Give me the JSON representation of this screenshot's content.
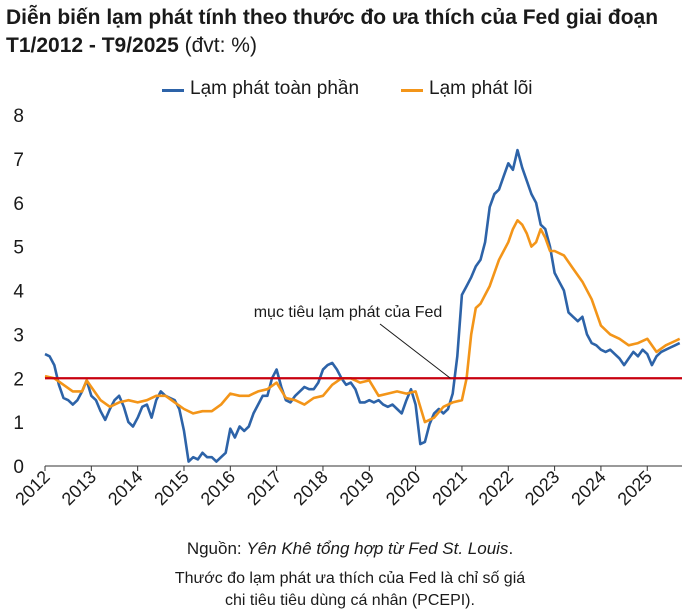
{
  "header": {
    "title_bold": "Diễn biến lạm phát tính theo thước đo ưa thích của Fed giai đoạn T1/2012 - T9/2025",
    "title_unit": "(đvt: %)"
  },
  "footer": {
    "source_prefix": "Nguồn: ",
    "source_text": "Yên Khê tổng hợp từ Fed St. Louis",
    "source_suffix": ".",
    "note_line1": "Thước đo lạm phát ưa thích của Fed là chỉ số giá",
    "note_line2": "chi tiêu tiêu dùng cá nhân (PCEPI)."
  },
  "colors": {
    "headline": "#2d63a8",
    "core": "#f39519",
    "target": "#c8000f",
    "axis": "#333333"
  },
  "chart_data": {
    "type": "line",
    "title": "Diễn biến lạm phát tính theo thước đo ưa thích của Fed giai đoạn T1/2012 - T9/2025",
    "xlabel": "",
    "ylabel": "",
    "ylim": [
      0,
      8
    ],
    "yticks": [
      "0",
      "1",
      "2",
      "3",
      "4",
      "5",
      "6",
      "7",
      "8"
    ],
    "xticks": [
      "2012",
      "2013",
      "2014",
      "2015",
      "2016",
      "2017",
      "2018",
      "2019",
      "2020",
      "2021",
      "2022",
      "2023",
      "2024",
      "2025"
    ],
    "xlim": [
      2012.0,
      2025.75
    ],
    "grid": false,
    "legend_position": "top",
    "annotation": {
      "text": "mục tiêu lạm phát của Fed",
      "target_value": 2,
      "points_to_year": 2020.75
    },
    "series": [
      {
        "name": "Lạm phát toàn phần",
        "x": [
          2012.0,
          2012.1,
          2012.2,
          2012.3,
          2012.4,
          2012.5,
          2012.6,
          2012.7,
          2012.8,
          2012.9,
          2013.0,
          2013.1,
          2013.2,
          2013.3,
          2013.4,
          2013.5,
          2013.6,
          2013.7,
          2013.8,
          2013.9,
          2014.0,
          2014.1,
          2014.2,
          2014.3,
          2014.4,
          2014.5,
          2014.6,
          2014.7,
          2014.8,
          2014.9,
          2015.0,
          2015.1,
          2015.2,
          2015.3,
          2015.4,
          2015.5,
          2015.6,
          2015.7,
          2015.8,
          2015.9,
          2016.0,
          2016.1,
          2016.2,
          2016.3,
          2016.4,
          2016.5,
          2016.6,
          2016.7,
          2016.8,
          2016.9,
          2017.0,
          2017.1,
          2017.2,
          2017.3,
          2017.4,
          2017.5,
          2017.6,
          2017.7,
          2017.8,
          2017.9,
          2018.0,
          2018.1,
          2018.2,
          2018.3,
          2018.4,
          2018.5,
          2018.6,
          2018.7,
          2018.8,
          2018.9,
          2019.0,
          2019.1,
          2019.2,
          2019.3,
          2019.4,
          2019.5,
          2019.6,
          2019.7,
          2019.8,
          2019.9,
          2020.0,
          2020.1,
          2020.2,
          2020.3,
          2020.4,
          2020.5,
          2020.6,
          2020.7,
          2020.8,
          2020.9,
          2021.0,
          2021.1,
          2021.2,
          2021.3,
          2021.4,
          2021.5,
          2021.6,
          2021.7,
          2021.8,
          2021.9,
          2022.0,
          2022.1,
          2022.2,
          2022.3,
          2022.4,
          2022.5,
          2022.6,
          2022.7,
          2022.8,
          2022.9,
          2023.0,
          2023.1,
          2023.2,
          2023.3,
          2023.4,
          2023.5,
          2023.6,
          2023.7,
          2023.8,
          2023.9,
          2024.0,
          2024.1,
          2024.2,
          2024.3,
          2024.4,
          2024.5,
          2024.6,
          2024.7,
          2024.8,
          2024.9,
          2025.0,
          2025.1,
          2025.2,
          2025.3,
          2025.4,
          2025.5,
          2025.6,
          2025.7
        ],
        "values": [
          2.55,
          2.5,
          2.3,
          1.85,
          1.55,
          1.5,
          1.4,
          1.5,
          1.7,
          1.95,
          1.6,
          1.5,
          1.25,
          1.05,
          1.3,
          1.5,
          1.6,
          1.35,
          1.0,
          0.9,
          1.1,
          1.35,
          1.4,
          1.1,
          1.5,
          1.7,
          1.6,
          1.55,
          1.5,
          1.3,
          0.8,
          0.1,
          0.2,
          0.15,
          0.3,
          0.2,
          0.2,
          0.1,
          0.2,
          0.3,
          0.85,
          0.65,
          0.9,
          0.8,
          0.9,
          1.2,
          1.4,
          1.6,
          1.6,
          2.0,
          2.2,
          1.8,
          1.5,
          1.45,
          1.6,
          1.7,
          1.8,
          1.75,
          1.75,
          1.9,
          2.2,
          2.3,
          2.35,
          2.2,
          2.0,
          1.85,
          1.9,
          1.75,
          1.45,
          1.45,
          1.5,
          1.45,
          1.5,
          1.4,
          1.35,
          1.4,
          1.3,
          1.2,
          1.5,
          1.75,
          1.4,
          0.5,
          0.55,
          0.95,
          1.2,
          1.3,
          1.2,
          1.3,
          1.65,
          2.5,
          3.9,
          4.1,
          4.3,
          4.55,
          4.7,
          5.1,
          5.9,
          6.2,
          6.3,
          6.6,
          6.9,
          6.75,
          7.2,
          6.8,
          6.5,
          6.2,
          6.0,
          5.5,
          5.4,
          5.0,
          4.4,
          4.2,
          4.0,
          3.5,
          3.4,
          3.3,
          3.4,
          3.0,
          2.8,
          2.75,
          2.65,
          2.6,
          2.65,
          2.55,
          2.45,
          2.3,
          2.45,
          2.6,
          2.5,
          2.65,
          2.55,
          2.3,
          2.5,
          2.6,
          2.65,
          2.7,
          2.75,
          2.8
        ],
        "color": "#2d63a8"
      },
      {
        "name": "Lạm phát lõi",
        "x": [
          2012.0,
          2012.2,
          2012.4,
          2012.6,
          2012.8,
          2012.9,
          2013.0,
          2013.2,
          2013.4,
          2013.6,
          2013.8,
          2014.0,
          2014.2,
          2014.4,
          2014.6,
          2014.8,
          2015.0,
          2015.2,
          2015.4,
          2015.6,
          2015.8,
          2016.0,
          2016.2,
          2016.4,
          2016.6,
          2016.8,
          2017.0,
          2017.2,
          2017.4,
          2017.6,
          2017.8,
          2018.0,
          2018.2,
          2018.4,
          2018.6,
          2018.8,
          2019.0,
          2019.2,
          2019.4,
          2019.6,
          2019.8,
          2020.0,
          2020.2,
          2020.4,
          2020.6,
          2020.8,
          2021.0,
          2021.1,
          2021.2,
          2021.3,
          2021.4,
          2021.5,
          2021.6,
          2021.8,
          2022.0,
          2022.1,
          2022.2,
          2022.3,
          2022.4,
          2022.5,
          2022.6,
          2022.7,
          2022.8,
          2022.9,
          2023.0,
          2023.2,
          2023.4,
          2023.6,
          2023.8,
          2024.0,
          2024.2,
          2024.4,
          2024.6,
          2024.8,
          2025.0,
          2025.2,
          2025.4,
          2025.6,
          2025.7
        ],
        "values": [
          2.05,
          2.0,
          1.85,
          1.7,
          1.7,
          1.95,
          1.8,
          1.5,
          1.35,
          1.45,
          1.5,
          1.45,
          1.5,
          1.6,
          1.6,
          1.45,
          1.3,
          1.2,
          1.25,
          1.25,
          1.4,
          1.65,
          1.6,
          1.6,
          1.7,
          1.75,
          1.9,
          1.55,
          1.5,
          1.4,
          1.55,
          1.6,
          1.85,
          2.0,
          2.0,
          1.9,
          1.95,
          1.6,
          1.65,
          1.7,
          1.65,
          1.7,
          1.0,
          1.1,
          1.35,
          1.45,
          1.5,
          2.0,
          3.0,
          3.6,
          3.7,
          3.9,
          4.1,
          4.7,
          5.1,
          5.4,
          5.6,
          5.5,
          5.3,
          5.0,
          5.1,
          5.4,
          5.2,
          4.9,
          4.9,
          4.8,
          4.5,
          4.2,
          3.8,
          3.2,
          3.0,
          2.9,
          2.75,
          2.8,
          2.9,
          2.6,
          2.75,
          2.85,
          2.9
        ],
        "color": "#f39519"
      }
    ]
  }
}
